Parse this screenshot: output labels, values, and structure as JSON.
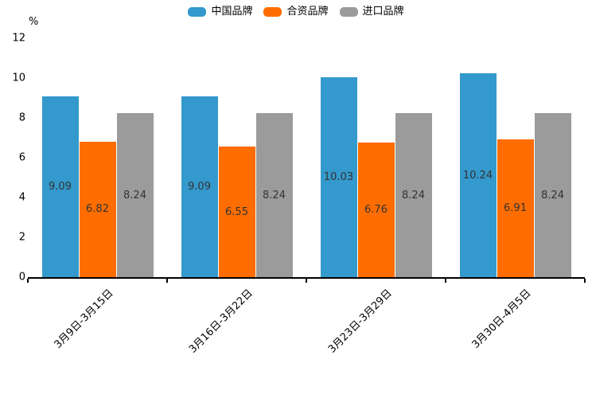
{
  "chart_data": {
    "type": "bar",
    "title": "",
    "ylabel": "%",
    "xlabel": "",
    "categories": [
      "3月9日-3月15日",
      "3月16日-3月22日",
      "3月23日-3月29日",
      "3月30日-4月5日"
    ],
    "series": [
      {
        "name": "中国品牌",
        "color": "#3499cc",
        "values": [
          9.09,
          9.09,
          10.03,
          10.24
        ]
      },
      {
        "name": "合资品牌",
        "color": "#ff6d00",
        "values": [
          6.82,
          6.55,
          6.76,
          6.91
        ]
      },
      {
        "name": "进口品牌",
        "color": "#9b9b9b",
        "values": [
          8.24,
          8.24,
          8.24,
          8.24
        ]
      }
    ],
    "ylim": [
      0,
      12
    ],
    "yticks": [
      0,
      2,
      4,
      6,
      8,
      10,
      12
    ],
    "grid": false,
    "legend_position": "top",
    "value_labels": true
  }
}
